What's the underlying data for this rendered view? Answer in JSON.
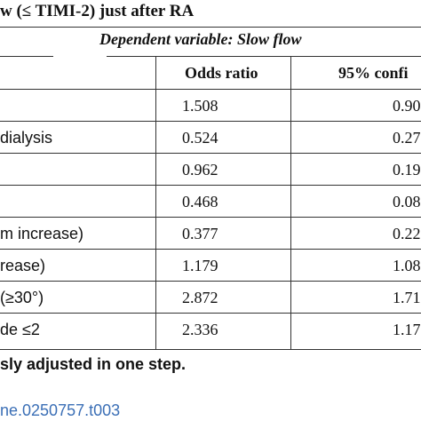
{
  "title": "w (≤ TIMI-2) just after RA",
  "dependent_variable": "Dependent variable: Slow flow",
  "headers": {
    "odds_ratio": "Odds ratio",
    "ci": "95% confi"
  },
  "rows": [
    {
      "variable": "",
      "odds_ratio": "1.508",
      "ci": "0.90"
    },
    {
      "variable": "dialysis",
      "odds_ratio": "0.524",
      "ci": "0.27"
    },
    {
      "variable": "",
      "odds_ratio": "0.962",
      "ci": "0.19"
    },
    {
      "variable": "",
      "odds_ratio": "0.468",
      "ci": "0.08"
    },
    {
      "variable": "m increase)",
      "odds_ratio": "0.377",
      "ci": "0.22"
    },
    {
      "variable": "rease)",
      "odds_ratio": "1.179",
      "ci": "1.08"
    },
    {
      "variable": "(≥30°)",
      "odds_ratio": "2.872",
      "ci": "1.71"
    },
    {
      "variable": "de ≤2",
      "odds_ratio": "2.336",
      "ci": "1.17"
    }
  ],
  "footnote": "sly adjusted in one step.",
  "doi": "ne.0250757.t003"
}
